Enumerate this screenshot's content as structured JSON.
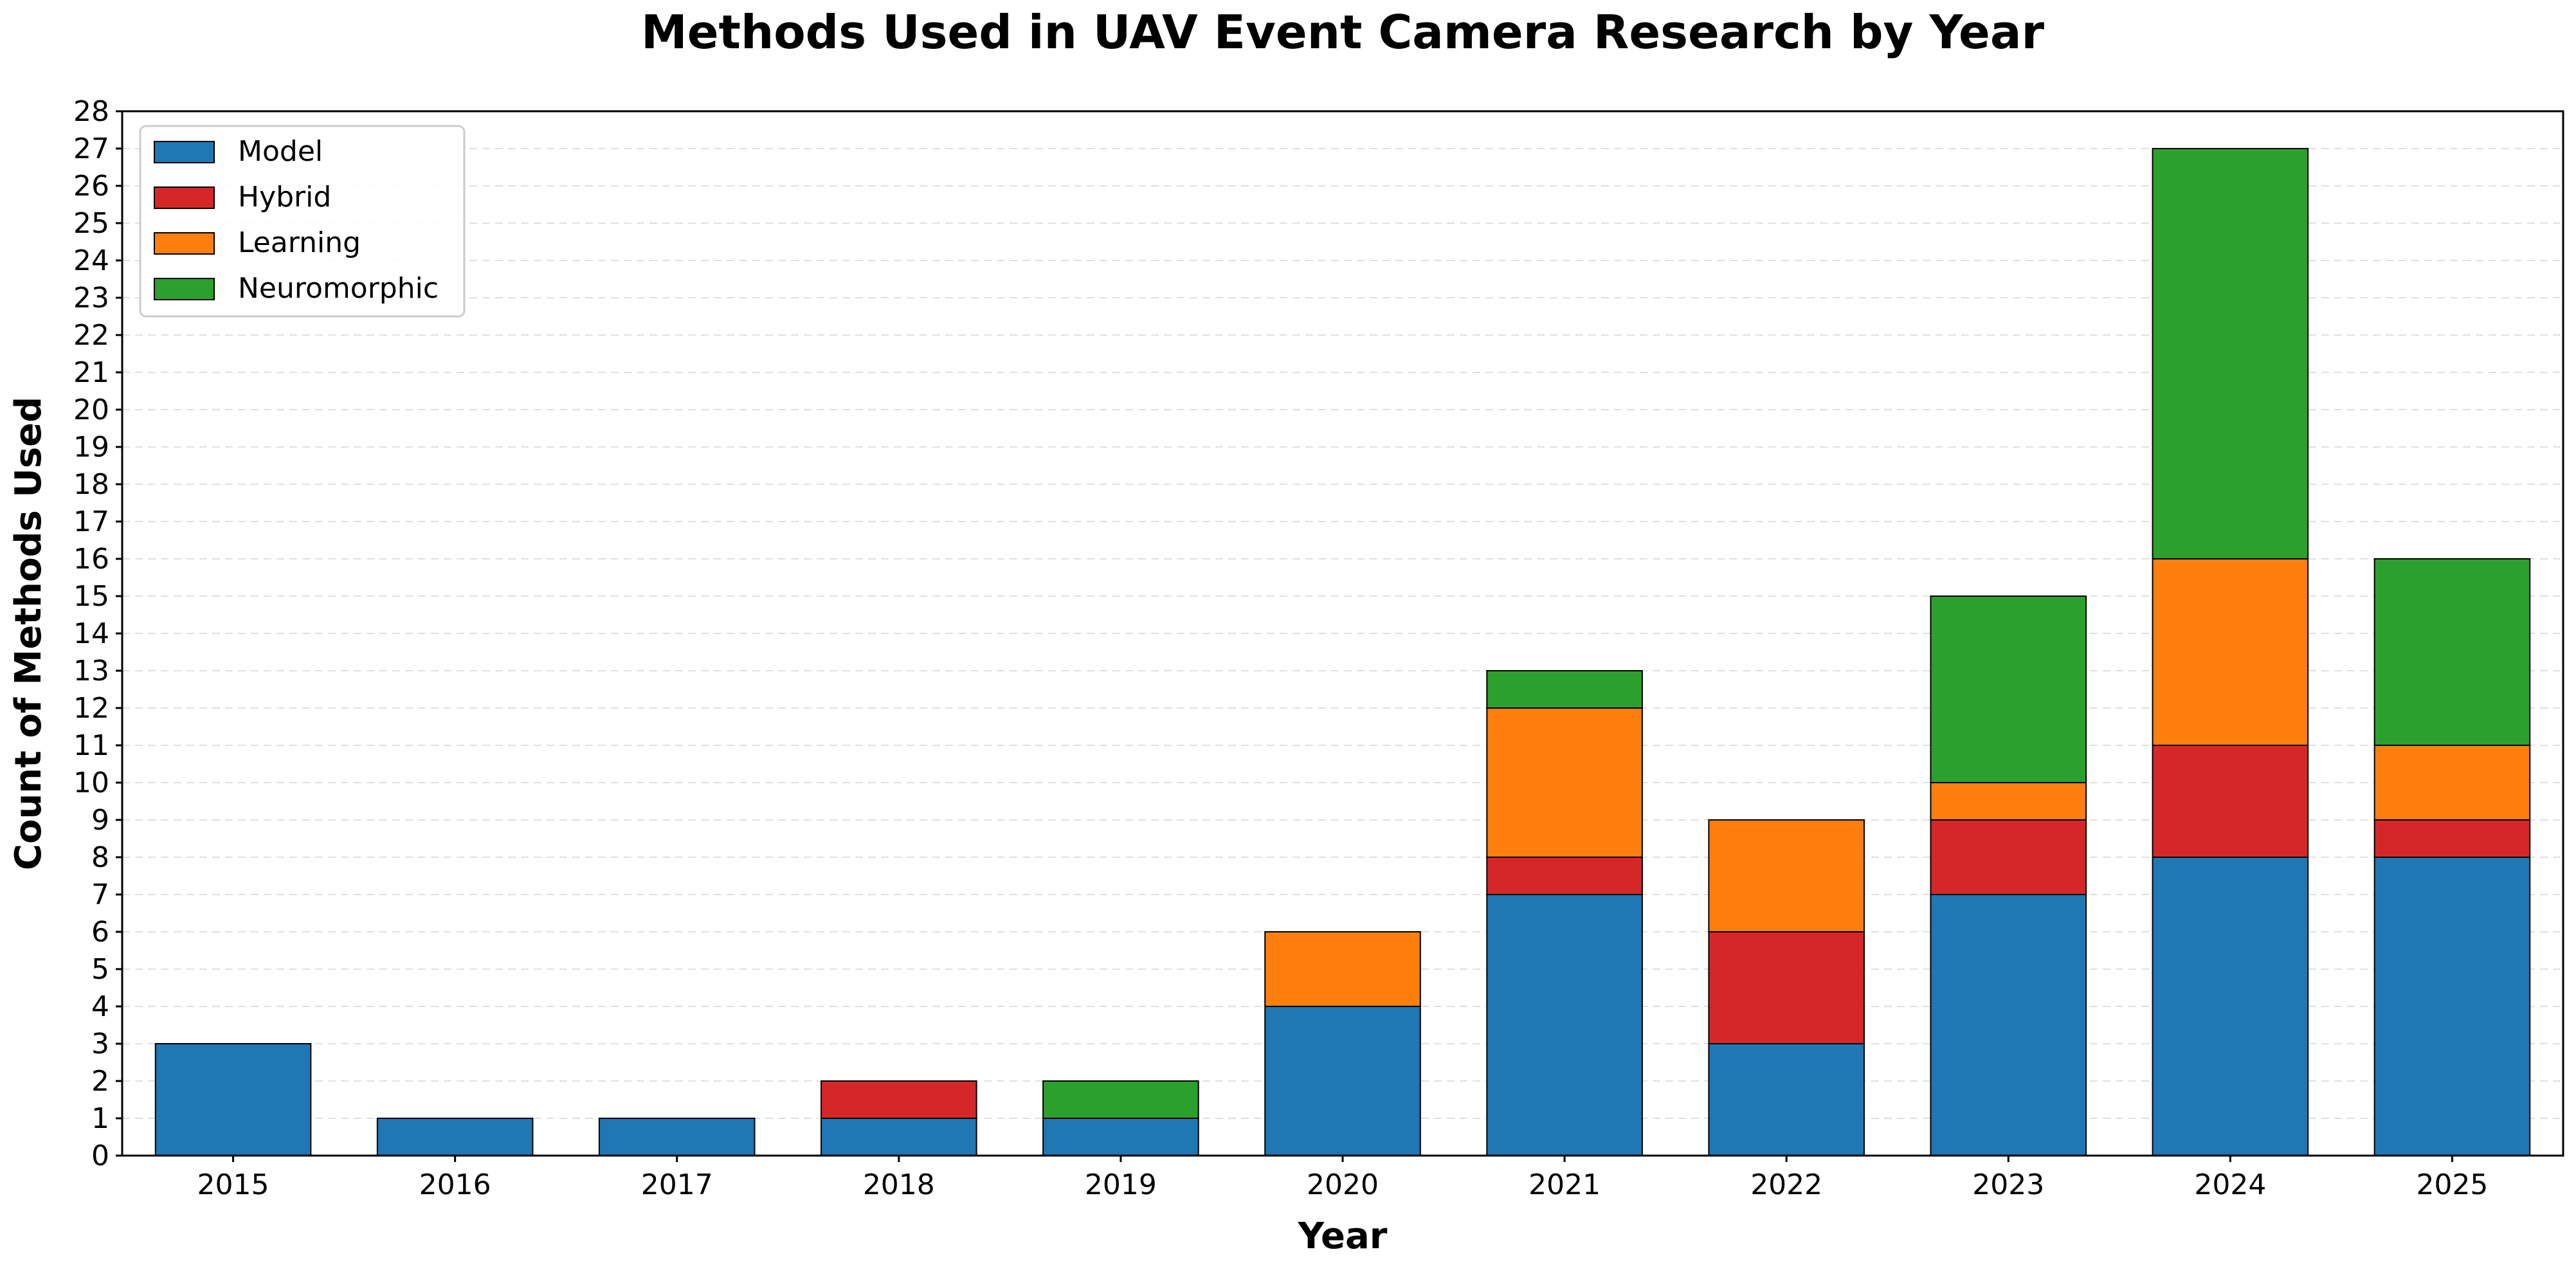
{
  "chart_data": {
    "type": "bar",
    "stacked": true,
    "title": "Methods Used in UAV Event Camera Research by Year",
    "xlabel": "Year",
    "ylabel": "Count of Methods Used",
    "ylim": [
      0,
      28
    ],
    "ytick_step": 1,
    "grid": "horizontal-dashed",
    "legend_position": "top-left",
    "categories": [
      "2015",
      "2016",
      "2017",
      "2018",
      "2019",
      "2020",
      "2021",
      "2022",
      "2023",
      "2024",
      "2025"
    ],
    "series": [
      {
        "name": "Model",
        "color": "#1f77b4",
        "values": [
          3,
          1,
          1,
          1,
          1,
          4,
          7,
          3,
          7,
          8,
          8
        ]
      },
      {
        "name": "Hybrid",
        "color": "#d62728",
        "values": [
          0,
          0,
          0,
          1,
          0,
          0,
          1,
          3,
          2,
          3,
          1
        ]
      },
      {
        "name": "Learning",
        "color": "#ff7f0e",
        "values": [
          0,
          0,
          0,
          0,
          0,
          2,
          4,
          3,
          1,
          5,
          2
        ]
      },
      {
        "name": "Neuromorphic",
        "color": "#2ca02c",
        "values": [
          0,
          0,
          0,
          0,
          1,
          0,
          1,
          0,
          5,
          11,
          5
        ]
      }
    ]
  }
}
